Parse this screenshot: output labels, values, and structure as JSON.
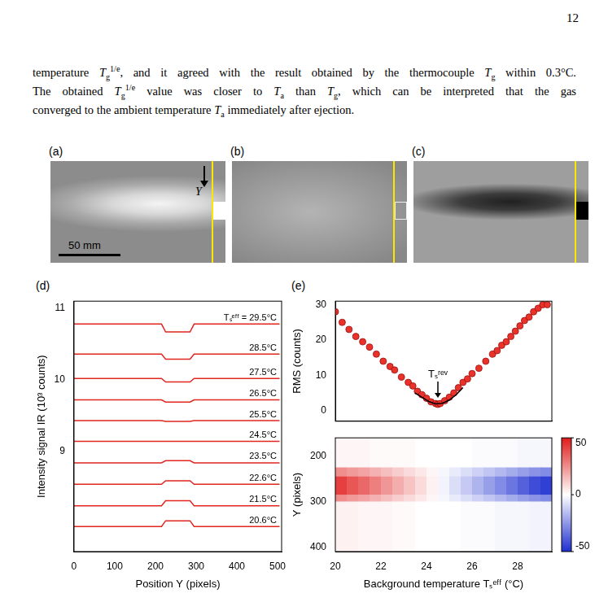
{
  "page_number": "12",
  "paragraph": [
    [
      {
        "text": "temperature "
      },
      {
        "text": "T",
        "style": "italic"
      },
      {
        "text": "g",
        "style": "sub"
      },
      {
        "text": "1/e",
        "style": "sup"
      },
      {
        "text": ", and it agreed with the result obtained by the thermocouple "
      },
      {
        "text": "T",
        "style": "italic"
      },
      {
        "text": "g",
        "style": "sub"
      },
      {
        "text": " within 0.3°C."
      }
    ],
    [
      {
        "text": "The obtained "
      },
      {
        "text": "T",
        "style": "italic"
      },
      {
        "text": "g",
        "style": "sub"
      },
      {
        "text": "1/e",
        "style": "sup"
      },
      {
        "text": " value was closer to "
      },
      {
        "text": "T",
        "style": "italic"
      },
      {
        "text": "a",
        "style": "sub"
      },
      {
        "text": " than "
      },
      {
        "text": "T",
        "style": "italic"
      },
      {
        "text": "g",
        "style": "sub"
      },
      {
        "text": ", which can be interpreted that the gas"
      }
    ],
    [
      {
        "text": "converged to the ambient temperature "
      },
      {
        "text": "T",
        "style": "italic"
      },
      {
        "text": "a",
        "style": "sub"
      },
      {
        "text": " immediately after ejection."
      }
    ]
  ],
  "photos": [
    {
      "letter": "(a)",
      "axis_arrow": "Y",
      "scale_bar": "50 mm"
    },
    {
      "letter": "(b)"
    },
    {
      "letter": "(c)"
    }
  ],
  "chart_data": [
    {
      "panel": "(d)",
      "type": "line",
      "x_label": "Position Y (pixels)",
      "y_label": "Intensity signal IR (10³ counts)",
      "x": [
        0,
        100,
        200,
        215,
        225,
        285,
        295,
        400,
        505
      ],
      "series": [
        {
          "name": "Tₛᵉᶠᶠ = 29.5°C",
          "color": "#e0261f",
          "values": [
            10.78,
            10.78,
            10.78,
            10.78,
            10.67,
            10.67,
            10.78,
            10.78,
            10.78
          ]
        },
        {
          "name": "28.5°C",
          "color": "#e0261f",
          "values": [
            10.36,
            10.36,
            10.36,
            10.36,
            10.29,
            10.29,
            10.36,
            10.36,
            10.36
          ]
        },
        {
          "name": "27.5°C",
          "color": "#e0261f",
          "values": [
            10.02,
            10.02,
            10.02,
            10.02,
            9.97,
            9.97,
            10.02,
            10.02,
            10.02
          ]
        },
        {
          "name": "26.5°C",
          "color": "#e0261f",
          "values": [
            9.72,
            9.72,
            9.72,
            9.72,
            9.69,
            9.69,
            9.72,
            9.72,
            9.72
          ]
        },
        {
          "name": "25.5°C",
          "color": "#e0261f",
          "values": [
            9.43,
            9.43,
            9.43,
            9.43,
            9.42,
            9.42,
            9.43,
            9.43,
            9.43
          ]
        },
        {
          "name": "24.5°C",
          "color": "#e0261f",
          "values": [
            9.14,
            9.14,
            9.14,
            9.14,
            9.14,
            9.14,
            9.14,
            9.14,
            9.14
          ]
        },
        {
          "name": "23.5°C",
          "color": "#e0261f",
          "values": [
            8.84,
            8.84,
            8.84,
            8.84,
            8.87,
            8.87,
            8.84,
            8.84,
            8.84
          ]
        },
        {
          "name": "22.6°C",
          "color": "#e0261f",
          "values": [
            8.54,
            8.54,
            8.54,
            8.54,
            8.59,
            8.59,
            8.54,
            8.54,
            8.54
          ]
        },
        {
          "name": "21.5°C",
          "color": "#e0261f",
          "values": [
            8.24,
            8.24,
            8.24,
            8.24,
            8.31,
            8.31,
            8.24,
            8.24,
            8.24
          ]
        },
        {
          "name": "20.6°C",
          "color": "#e0261f",
          "values": [
            7.95,
            7.95,
            7.95,
            7.95,
            8.03,
            8.03,
            7.95,
            7.95,
            7.95
          ]
        }
      ],
      "xlim": [
        0,
        510
      ],
      "xticks": [
        0,
        100,
        200,
        300,
        400,
        500
      ],
      "ylim": [
        7.6,
        11.1
      ],
      "yticks": [
        9,
        10,
        11
      ],
      "grid": false
    },
    {
      "panel": "(e)",
      "type": "scatter",
      "y_label": "RMS (counts)",
      "xlim": [
        20,
        29.5
      ],
      "xticks": [
        20,
        22,
        24,
        26,
        28
      ],
      "ylim": [
        -3,
        31
      ],
      "yticks": [
        0,
        10,
        20,
        30
      ],
      "tick_labels": "y",
      "grid": false,
      "series": [
        {
          "type": "scatter",
          "marker": "circle",
          "color": "#e8322a",
          "x": [
            20,
            20.3,
            20.6,
            20.9,
            21.2,
            21.5,
            21.8,
            22.1,
            22.4,
            22.6,
            22.9,
            23.2,
            23.4,
            23.6,
            23.8,
            24.0,
            24.2,
            24.4,
            24.5,
            24.6,
            24.8,
            25.0,
            25.2,
            25.4,
            25.6,
            25.8,
            26.0,
            26.3,
            26.6,
            26.9,
            27.1,
            27.3,
            27.5,
            27.7,
            27.9,
            28.1,
            28.3,
            28.5,
            28.7,
            28.9,
            29.1,
            29.3
          ],
          "values": [
            28,
            25,
            23,
            21,
            19.5,
            18,
            16,
            14,
            12.5,
            11.5,
            9.5,
            8,
            7,
            5.5,
            4.5,
            3.5,
            2.5,
            2,
            1.8,
            2,
            2.8,
            3.8,
            5,
            6.5,
            8,
            9,
            10.5,
            12,
            14,
            16,
            17,
            18.5,
            19.5,
            21,
            22.5,
            24,
            25.5,
            26.5,
            28,
            29,
            30,
            30
          ]
        },
        {
          "type": "line",
          "line_style": "solid",
          "color": "#000000",
          "x": [
            23.5,
            23.8,
            24.1,
            24.4,
            24.7,
            25.0,
            25.3,
            25.6
          ],
          "values": [
            5,
            3.8,
            2.6,
            1.9,
            2.1,
            3,
            4.5,
            6.5
          ]
        }
      ],
      "annotations": [
        {
          "text": "Tₛʳᵉᵛ",
          "x": 24.5
        }
      ]
    },
    {
      "type": "heatmap",
      "x_label": "Background temperature Tₛᵉᶠᶠ (°C)",
      "y_label": "Y (pixels)",
      "xlim": [
        20,
        29.5
      ],
      "xticks": [
        20,
        22,
        24,
        26,
        28
      ],
      "ylim": [
        410,
        160
      ],
      "yticks": [
        200,
        300,
        400
      ],
      "grid": false,
      "cells": {
        "x_edges": [
          20,
          20.5,
          21,
          21.5,
          22,
          22.5,
          23,
          23.5,
          24,
          24.5,
          25,
          25.5,
          26,
          26.5,
          27,
          27.5,
          28,
          28.5,
          29,
          29.5
        ],
        "y_edges": [
          160,
          225,
          245,
          265,
          285,
          300,
          410
        ],
        "values": [
          [
            2,
            2,
            2,
            1,
            1,
            1,
            1,
            0,
            0,
            0,
            0,
            0,
            -1,
            -1,
            -1,
            -1,
            -2,
            -2,
            -2
          ],
          [
            25,
            22,
            20,
            17,
            14,
            11,
            8,
            5,
            2,
            -2,
            -5,
            -8,
            -11,
            -14,
            -17,
            -20,
            -23,
            -26,
            -28
          ],
          [
            42,
            37,
            33,
            28,
            23,
            18,
            13,
            8,
            3,
            -3,
            -8,
            -13,
            -18,
            -23,
            -28,
            -33,
            -38,
            -43,
            -46
          ],
          [
            42,
            37,
            33,
            28,
            23,
            18,
            13,
            8,
            3,
            -3,
            -8,
            -13,
            -18,
            -23,
            -28,
            -33,
            -38,
            -43,
            -46
          ],
          [
            25,
            22,
            20,
            17,
            14,
            11,
            8,
            5,
            2,
            -2,
            -5,
            -8,
            -11,
            -14,
            -17,
            -20,
            -23,
            -26,
            -28
          ],
          [
            3,
            3,
            2,
            2,
            2,
            1,
            1,
            0,
            0,
            0,
            0,
            -1,
            -1,
            -1,
            -2,
            -2,
            -2,
            -3,
            -3
          ]
        ]
      },
      "colorbar": {
        "range": [
          -50,
          50
        ],
        "ticks": [
          -50,
          0,
          50
        ],
        "colors": [
          "#1f2fd0",
          "#ffffff",
          "#e01a1a"
        ]
      }
    }
  ]
}
